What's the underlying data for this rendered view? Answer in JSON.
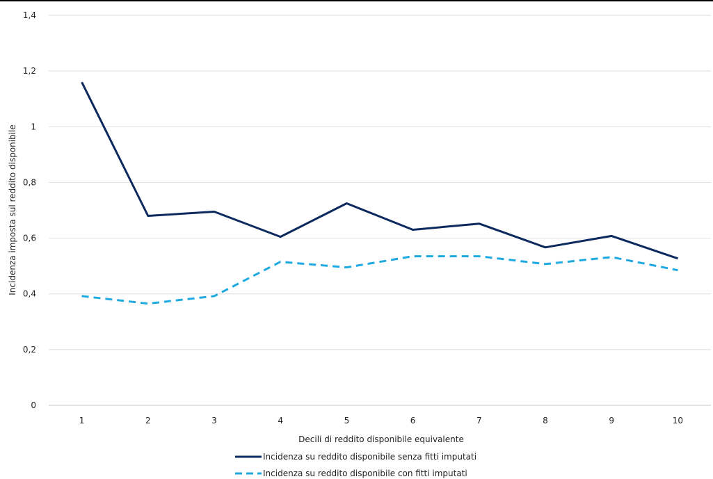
{
  "chart_data": {
    "type": "line",
    "title": "",
    "xlabel": "Decili di reddito disponibile equivalente",
    "ylabel": "Incidenza imposta sul reddito disponibile",
    "categories": [
      "1",
      "2",
      "3",
      "4",
      "5",
      "6",
      "7",
      "8",
      "9",
      "10"
    ],
    "ylim": [
      0,
      1.4
    ],
    "yticks": [
      0,
      0.2,
      0.4,
      0.6,
      0.8,
      1,
      1.2,
      1.4
    ],
    "ytick_labels": [
      "0",
      "0,2",
      "0,4",
      "0,6",
      "0,8",
      "1",
      "1,2",
      "1,4"
    ],
    "grid": "horizontal",
    "legend_position": "bottom",
    "series": [
      {
        "name": "Incidenza su reddito disponibile senza fitti imputati",
        "values": [
          1.16,
          0.68,
          0.695,
          0.605,
          0.725,
          0.63,
          0.652,
          0.567,
          0.608,
          0.527
        ],
        "color": "#0d2a5e",
        "style": "solid"
      },
      {
        "name": "Incidenza su reddito disponibile con fitti imputati",
        "values": [
          0.392,
          0.365,
          0.392,
          0.515,
          0.495,
          0.535,
          0.535,
          0.507,
          0.532,
          0.485
        ],
        "color": "#1fa9e1",
        "style": "dashed"
      }
    ]
  }
}
